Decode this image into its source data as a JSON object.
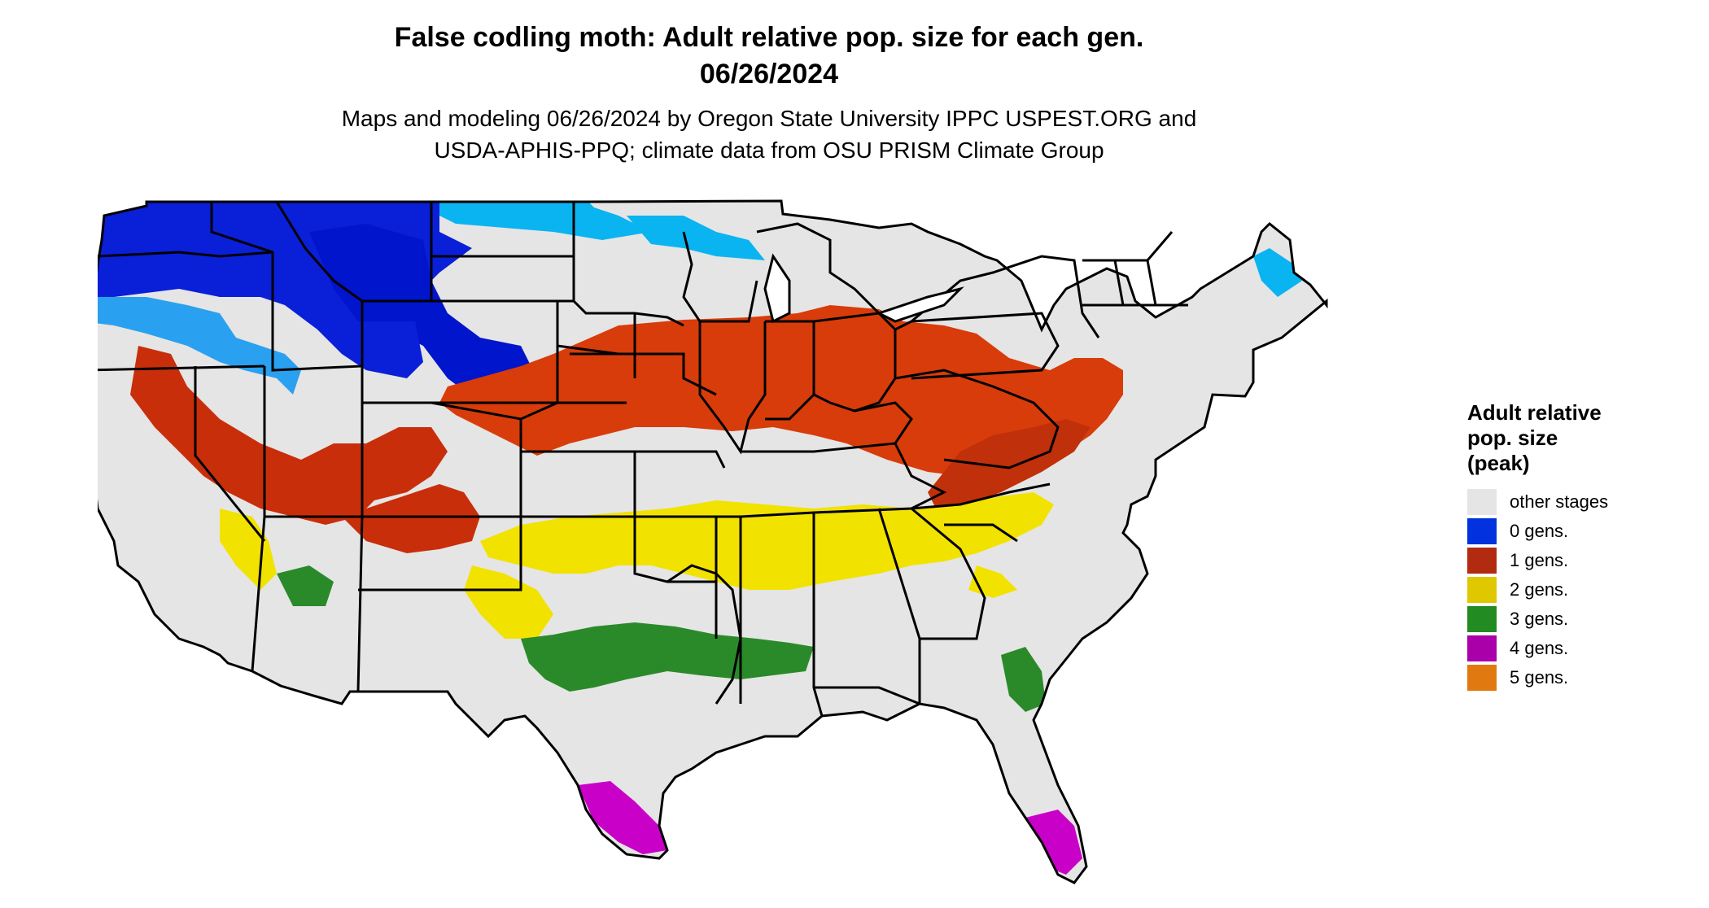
{
  "title": {
    "line1": "False codling moth: Adult relative pop. size for each gen.",
    "line2": "06/26/2024"
  },
  "subtitle": {
    "line1": "Maps and modeling 06/26/2024 by Oregon State University IPPC USPEST.ORG and",
    "line2": "USDA-APHIS-PPQ; climate data from OSU PRISM Climate Group"
  },
  "legend": {
    "title_lines": [
      "Adult relative",
      "pop. size",
      "(peak)"
    ],
    "items": [
      {
        "label": "other stages",
        "color": "#e5e5e5"
      },
      {
        "label": "0 gens.",
        "color": "#0033dd"
      },
      {
        "label": "1 gens.",
        "color": "#b22a10"
      },
      {
        "label": "2 gens.",
        "color": "#e0c800"
      },
      {
        "label": "3 gens.",
        "color": "#228b22"
      },
      {
        "label": "4 gens.",
        "color": "#aa00aa"
      },
      {
        "label": "5 gens.",
        "color": "#e07a10"
      }
    ]
  },
  "map": {
    "region": "Contiguous United States",
    "background_color": "#e5e5e5",
    "boundary_color": "#000000"
  }
}
